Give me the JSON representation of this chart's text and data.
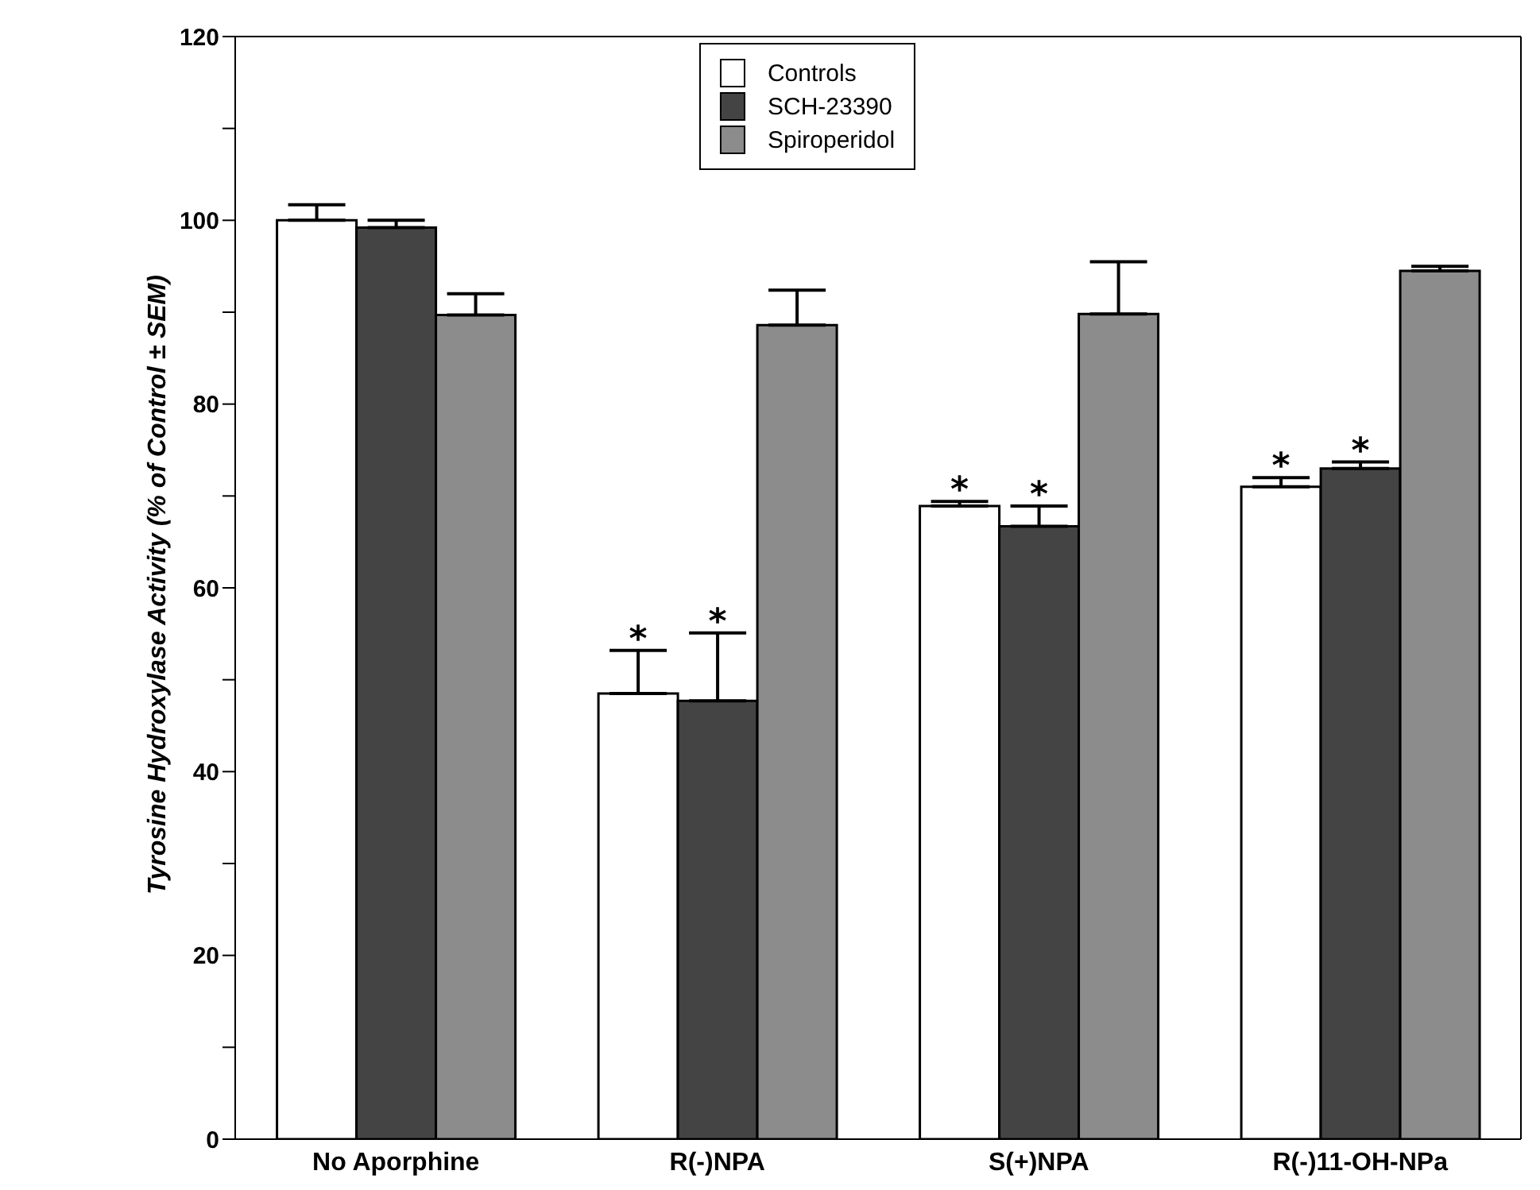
{
  "chart_data": {
    "type": "bar",
    "ylabel": "Tyrosine Hydroxylase Activity (% of Control ± SEM)",
    "categories": [
      "No  Aporphine",
      "R(-)NPA",
      "S(+)NPA",
      "R(-)11-OH-NPa"
    ],
    "series": [
      {
        "name": "Controls",
        "color": "#ffffff",
        "values": [
          100,
          48.5,
          68.9,
          71
        ],
        "errors": [
          [
            100,
            101.7
          ],
          [
            48.5,
            53.2
          ],
          [
            68.9,
            69.4
          ],
          [
            71,
            72
          ]
        ]
      },
      {
        "name": "SCH-23390",
        "color": "#444444",
        "values": [
          99.2,
          47.7,
          66.7,
          73
        ],
        "errors": [
          [
            99.2,
            100
          ],
          [
            47.7,
            55.1
          ],
          [
            66.7,
            68.9
          ],
          [
            73,
            73.7
          ]
        ]
      },
      {
        "name": "Spiroperidol",
        "color": "#8c8c8c",
        "values": [
          89.7,
          88.6,
          89.8,
          94.5
        ],
        "errors": [
          [
            89.7,
            92
          ],
          [
            88.6,
            92.4
          ],
          [
            89.8,
            95.5
          ],
          [
            94.5,
            95
          ]
        ]
      }
    ],
    "ylim": [
      0,
      120
    ],
    "yticks": [
      0,
      {
        "value": 10,
        "label": null
      },
      20,
      {
        "value": 30,
        "label": null
      },
      40,
      {
        "value": 50,
        "label": null
      },
      60,
      {
        "value": 70,
        "label": null
      },
      80,
      {
        "value": 90,
        "label": null
      },
      100,
      {
        "value": 110,
        "label": null
      },
      120
    ],
    "annotations": [
      {
        "text": "*",
        "x": "R(-)NPA",
        "y": 53.2
      },
      {
        "text": "*",
        "x": "R(-)NPA",
        "y": 55.1
      },
      {
        "text": "*",
        "x": "S(+)NPA",
        "y": 69.4
      },
      {
        "text": "*",
        "x": "S(+)NPA",
        "y": 68.9
      },
      {
        "text": "*",
        "y": 72
      },
      {
        "text": "*",
        "x": "R(-)11-OH-NPa",
        "y": 73.7
      }
    ],
    "legend": "top",
    "grid": false
  }
}
